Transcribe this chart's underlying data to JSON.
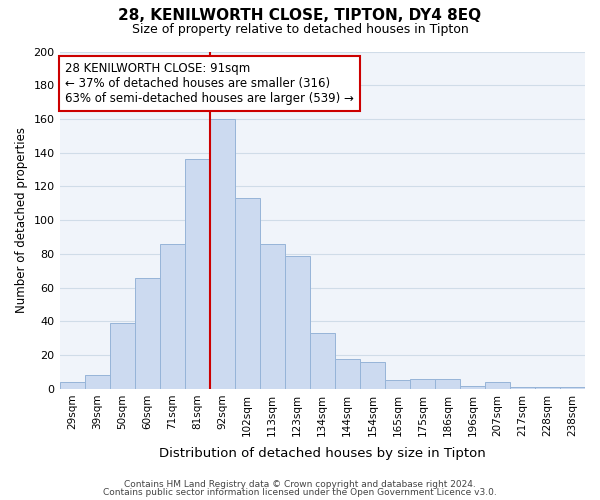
{
  "title": "28, KENILWORTH CLOSE, TIPTON, DY4 8EQ",
  "subtitle": "Size of property relative to detached houses in Tipton",
  "xlabel": "Distribution of detached houses by size in Tipton",
  "ylabel": "Number of detached properties",
  "bar_labels": [
    "29sqm",
    "39sqm",
    "50sqm",
    "60sqm",
    "71sqm",
    "81sqm",
    "92sqm",
    "102sqm",
    "113sqm",
    "123sqm",
    "134sqm",
    "144sqm",
    "154sqm",
    "165sqm",
    "175sqm",
    "186sqm",
    "196sqm",
    "207sqm",
    "217sqm",
    "228sqm",
    "238sqm"
  ],
  "bar_values": [
    4,
    8,
    39,
    66,
    86,
    136,
    160,
    113,
    86,
    79,
    33,
    18,
    16,
    5,
    6,
    6,
    2,
    4,
    1,
    1,
    1
  ],
  "bar_color": "#ccdaf0",
  "bar_edge_color": "#96b4d8",
  "highlight_index": 6,
  "highlight_line_color": "#cc0000",
  "ylim": [
    0,
    200
  ],
  "yticks": [
    0,
    20,
    40,
    60,
    80,
    100,
    120,
    140,
    160,
    180,
    200
  ],
  "annotation_box_text": "28 KENILWORTH CLOSE: 91sqm\n← 37% of detached houses are smaller (316)\n63% of semi-detached houses are larger (539) →",
  "footer_line1": "Contains HM Land Registry data © Crown copyright and database right 2024.",
  "footer_line2": "Contains public sector information licensed under the Open Government Licence v3.0.",
  "grid_color": "#d0dce8",
  "background_color": "#ffffff",
  "bg_axes_color": "#f0f4fa"
}
